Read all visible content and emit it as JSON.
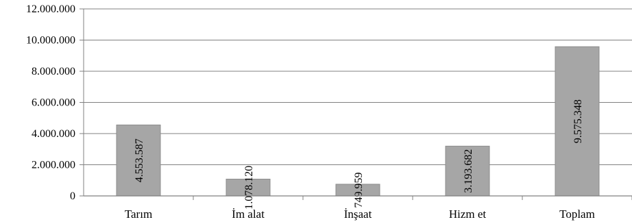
{
  "chart_data": {
    "type": "bar",
    "categories": [
      "Tarım",
      "İm alat",
      "İnşaat",
      "Hizm et",
      "Toplam"
    ],
    "values": [
      4553587,
      1078120,
      749959,
      3193682,
      9575348
    ],
    "data_labels": [
      "4.553.587",
      "1.078.120",
      "749.959",
      "3.193.682",
      "9.575.348"
    ],
    "y_ticks": [
      "0",
      "2.000.000",
      "4.000.000",
      "6.000.000",
      "8.000.000",
      "10.000.000",
      "12.000.000"
    ],
    "ylim": [
      0,
      12000000
    ],
    "grid": true,
    "bar_color": "#a6a6a6",
    "bar_edge_color": "#8c8c8c",
    "axis_color": "#808080",
    "title": "",
    "xlabel": "",
    "ylabel": ""
  }
}
